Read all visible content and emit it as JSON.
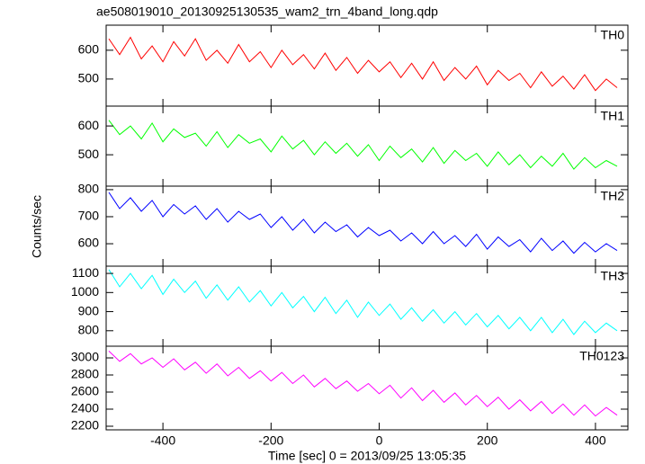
{
  "chart_data": {
    "type": "line",
    "title": "ae508019010_20130925130535_wam2_trn_4band_long.qdp",
    "x_label": "Time [sec] 0 = 2013/09/25 13:05:35",
    "y_label": "Counts/sec",
    "x": [
      -500,
      -480,
      -460,
      -440,
      -420,
      -400,
      -380,
      -360,
      -340,
      -320,
      -300,
      -280,
      -260,
      -240,
      -220,
      -200,
      -180,
      -160,
      -140,
      -120,
      -100,
      -80,
      -60,
      -40,
      -20,
      0,
      20,
      40,
      60,
      80,
      100,
      120,
      140,
      160,
      180,
      200,
      220,
      240,
      260,
      280,
      300,
      320,
      340,
      360,
      380,
      400,
      420,
      440
    ],
    "xlim": [
      -505,
      460
    ],
    "xticks": [
      -400,
      -200,
      0,
      200,
      400
    ],
    "panels": [
      {
        "series": [
          {
            "name": "TH0",
            "color": "#ff0000",
            "values": [
              640,
              585,
              645,
              570,
              615,
              560,
              630,
              580,
              640,
              565,
              600,
              555,
              620,
              560,
              595,
              540,
              600,
              550,
              585,
              535,
              590,
              530,
              575,
              520,
              565,
              525,
              560,
              505,
              555,
              500,
              560,
              495,
              540,
              500,
              545,
              480,
              530,
              495,
              520,
              470,
              525,
              475,
              510,
              465,
              515,
              460,
              500,
              470
            ]
          }
        ],
        "ylim": [
          406,
          687
        ],
        "yticks": [
          500,
          600
        ]
      },
      {
        "series": [
          {
            "name": "TH1",
            "color": "#00ff00",
            "values": [
              620,
              570,
              600,
              555,
              610,
              545,
              590,
              560,
              575,
              530,
              580,
              525,
              570,
              540,
              555,
              510,
              565,
              520,
              550,
              500,
              545,
              505,
              540,
              495,
              535,
              480,
              530,
              490,
              520,
              475,
              525,
              470,
              515,
              480,
              505,
              460,
              510,
              465,
              500,
              455,
              495,
              460,
              505,
              450,
              490,
              455,
              480,
              460
            ]
          }
        ],
        "ylim": [
          391,
          669
        ],
        "yticks": [
          500,
          600
        ]
      },
      {
        "series": [
          {
            "name": "TH2",
            "color": "#0000ff",
            "values": [
              790,
              730,
              770,
              720,
              760,
              700,
              745,
              710,
              740,
              690,
              730,
              680,
              720,
              690,
              710,
              660,
              700,
              650,
              690,
              640,
              680,
              645,
              670,
              625,
              660,
              630,
              650,
              610,
              640,
              600,
              645,
              600,
              630,
              590,
              635,
              580,
              625,
              590,
              615,
              570,
              620,
              575,
              610,
              565,
              605,
              570,
              600,
              575
            ]
          }
        ],
        "ylim": [
          517,
          813
        ],
        "yticks": [
          600,
          700,
          800
        ]
      },
      {
        "series": [
          {
            "name": "TH3",
            "color": "#00ffff",
            "values": [
              1120,
              1030,
              1100,
              1020,
              1090,
              990,
              1070,
              1000,
              1060,
              970,
              1040,
              960,
              1030,
              950,
              1010,
              930,
              1000,
              920,
              980,
              900,
              975,
              890,
              960,
              870,
              950,
              880,
              940,
              860,
              920,
              850,
              910,
              840,
              900,
              830,
              890,
              820,
              880,
              810,
              870,
              800,
              870,
              790,
              860,
              780,
              850,
              790,
              840,
              800
            ]
          }
        ],
        "ylim": [
          719,
          1138
        ],
        "yticks": [
          800,
          900,
          1000,
          1100
        ]
      },
      {
        "series": [
          {
            "name": "TH0123",
            "color": "#ff00ff",
            "values": [
              3080,
              2960,
              3050,
              2930,
              3000,
              2890,
              2990,
              2860,
              2950,
              2820,
              2930,
              2790,
              2890,
              2760,
              2850,
              2730,
              2830,
              2700,
              2800,
              2660,
              2760,
              2640,
              2730,
              2610,
              2700,
              2580,
              2680,
              2530,
              2650,
              2500,
              2620,
              2480,
              2590,
              2450,
              2560,
              2430,
              2540,
              2400,
              2510,
              2380,
              2490,
              2350,
              2460,
              2330,
              2450,
              2320,
              2420,
              2330
            ]
          }
        ],
        "ylim": [
          2158,
          3137
        ],
        "yticks": [
          2200,
          2400,
          2600,
          2800,
          3000
        ]
      }
    ]
  }
}
